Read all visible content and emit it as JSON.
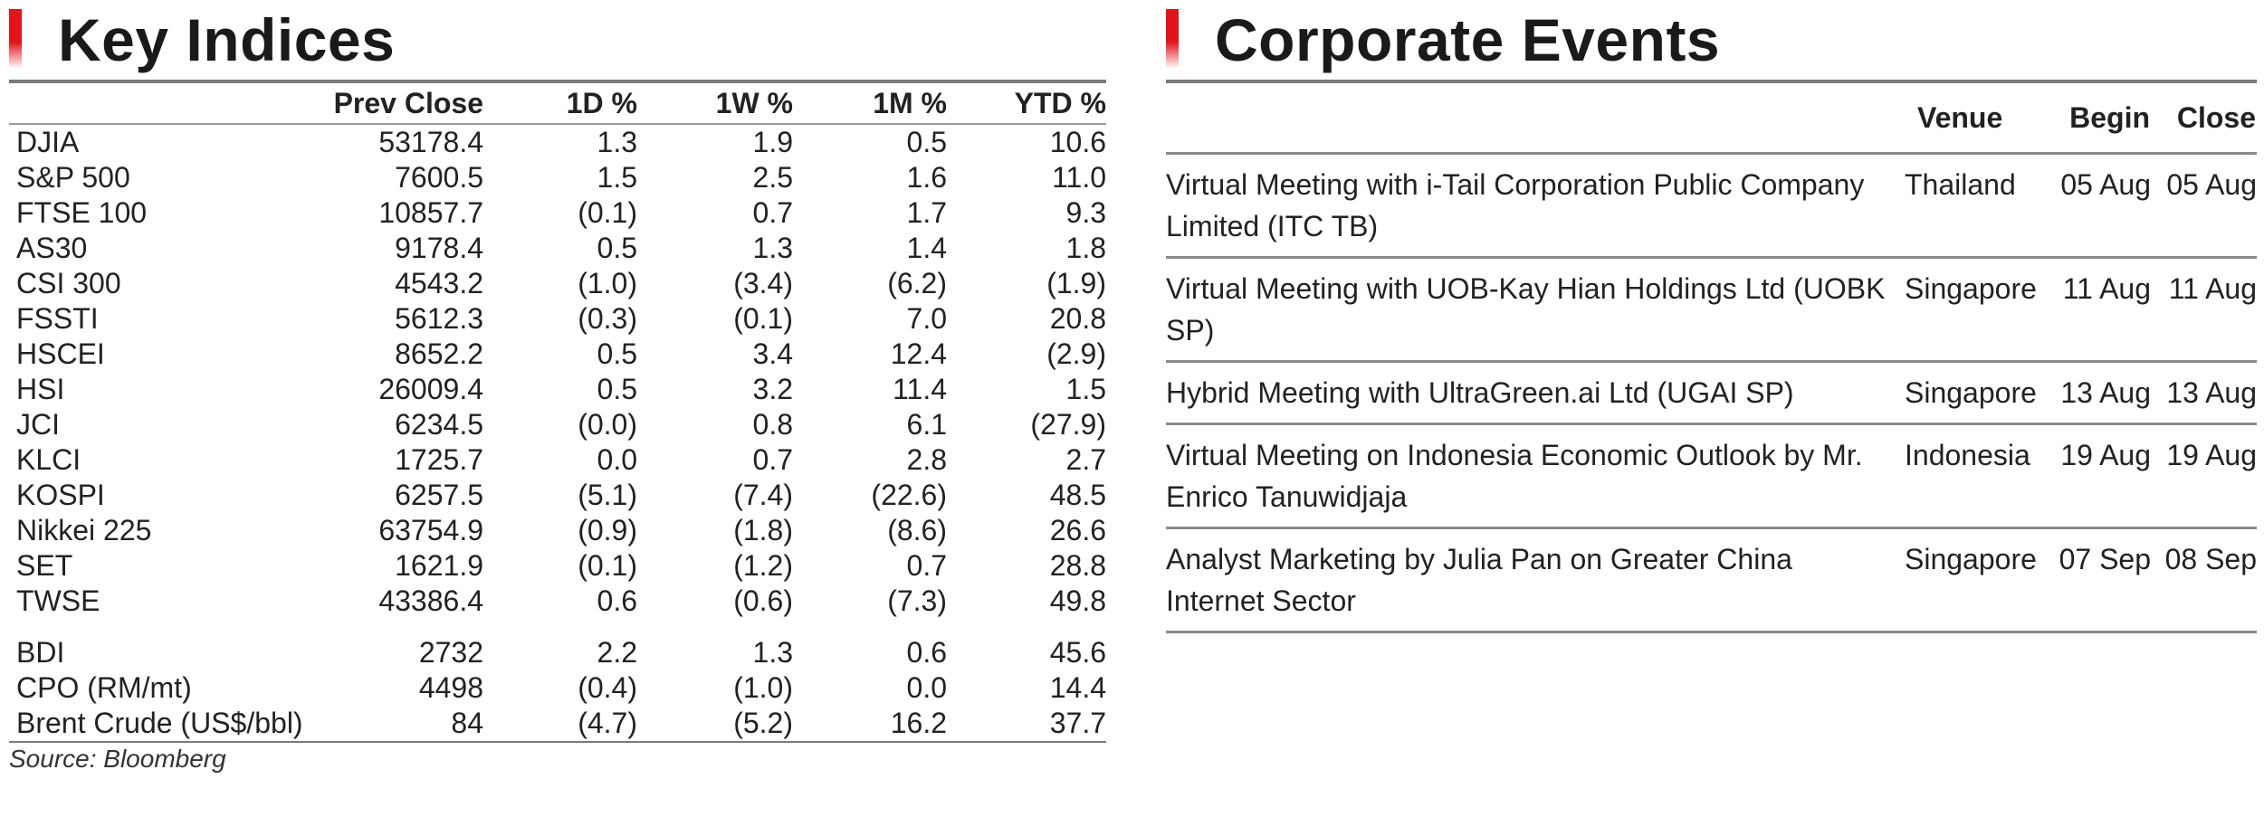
{
  "key_indices": {
    "title": "Key Indices",
    "columns": [
      "",
      "Prev Close",
      "1D %",
      "1W %",
      "1M %",
      "YTD %"
    ],
    "rows": [
      {
        "name": "DJIA",
        "prev_close": "53178.4",
        "d1": "1.3",
        "w1": "1.9",
        "m1": "0.5",
        "ytd": "10.6"
      },
      {
        "name": "S&P 500",
        "prev_close": "7600.5",
        "d1": "1.5",
        "w1": "2.5",
        "m1": "1.6",
        "ytd": "11.0"
      },
      {
        "name": "FTSE 100",
        "prev_close": "10857.7",
        "d1": "(0.1)",
        "w1": "0.7",
        "m1": "1.7",
        "ytd": "9.3"
      },
      {
        "name": "AS30",
        "prev_close": "9178.4",
        "d1": "0.5",
        "w1": "1.3",
        "m1": "1.4",
        "ytd": "1.8"
      },
      {
        "name": "CSI 300",
        "prev_close": "4543.2",
        "d1": "(1.0)",
        "w1": "(3.4)",
        "m1": "(6.2)",
        "ytd": "(1.9)"
      },
      {
        "name": "FSSTI",
        "prev_close": "5612.3",
        "d1": "(0.3)",
        "w1": "(0.1)",
        "m1": "7.0",
        "ytd": "20.8"
      },
      {
        "name": "HSCEI",
        "prev_close": "8652.2",
        "d1": "0.5",
        "w1": "3.4",
        "m1": "12.4",
        "ytd": "(2.9)"
      },
      {
        "name": "HSI",
        "prev_close": "26009.4",
        "d1": "0.5",
        "w1": "3.2",
        "m1": "11.4",
        "ytd": "1.5"
      },
      {
        "name": "JCI",
        "prev_close": "6234.5",
        "d1": "(0.0)",
        "w1": "0.8",
        "m1": "6.1",
        "ytd": "(27.9)"
      },
      {
        "name": "KLCI",
        "prev_close": "1725.7",
        "d1": "0.0",
        "w1": "0.7",
        "m1": "2.8",
        "ytd": "2.7"
      },
      {
        "name": "KOSPI",
        "prev_close": "6257.5",
        "d1": "(5.1)",
        "w1": "(7.4)",
        "m1": "(22.6)",
        "ytd": "48.5"
      },
      {
        "name": "Nikkei 225",
        "prev_close": "63754.9",
        "d1": "(0.9)",
        "w1": "(1.8)",
        "m1": "(8.6)",
        "ytd": "26.6"
      },
      {
        "name": "SET",
        "prev_close": "1621.9",
        "d1": "(0.1)",
        "w1": "(1.2)",
        "m1": "0.7",
        "ytd": "28.8"
      },
      {
        "name": "TWSE",
        "prev_close": "43386.4",
        "d1": "0.6",
        "w1": "(0.6)",
        "m1": "(7.3)",
        "ytd": "49.8"
      }
    ],
    "commodities": [
      {
        "name": "BDI",
        "prev_close": "2732",
        "d1": "2.2",
        "w1": "1.3",
        "m1": "0.6",
        "ytd": "45.6"
      },
      {
        "name": "CPO (RM/mt)",
        "prev_close": "4498",
        "d1": "(0.4)",
        "w1": "(1.0)",
        "m1": "0.0",
        "ytd": "14.4"
      },
      {
        "name": "Brent Crude (US$/bbl)",
        "prev_close": "84",
        "d1": "(4.7)",
        "w1": "(5.2)",
        "m1": "16.2",
        "ytd": "37.7"
      }
    ],
    "source": "Source: Bloomberg"
  },
  "corporate_events": {
    "title": "Corporate Events",
    "columns": {
      "venue": "Venue",
      "begin": "Begin",
      "close": "Close"
    },
    "events": [
      {
        "description": "Virtual Meeting with i-Tail Corporation Public Company Limited (ITC TB)",
        "venue": "Thailand",
        "begin": "05 Aug",
        "close": "05 Aug"
      },
      {
        "description": "Virtual Meeting with UOB-Kay Hian Holdings Ltd (UOBK SP)",
        "venue": "Singapore",
        "begin": "11 Aug",
        "close": "11 Aug"
      },
      {
        "description": "Hybrid Meeting with UltraGreen.ai Ltd (UGAI SP)",
        "venue": "Singapore",
        "begin": "13 Aug",
        "close": "13 Aug"
      },
      {
        "description": "Virtual Meeting on Indonesia Economic Outlook by Mr. Enrico Tanuwidjaja",
        "venue": "Indonesia",
        "begin": "19 Aug",
        "close": "19 Aug"
      },
      {
        "description": "Analyst Marketing by Julia Pan on Greater China Internet Sector",
        "venue": "Singapore",
        "begin": "07 Sep",
        "close": "08 Sep"
      }
    ]
  },
  "colors": {
    "accent_red": "#e1141b",
    "rule_gray": "#7a7a7a",
    "text": "#222222"
  }
}
